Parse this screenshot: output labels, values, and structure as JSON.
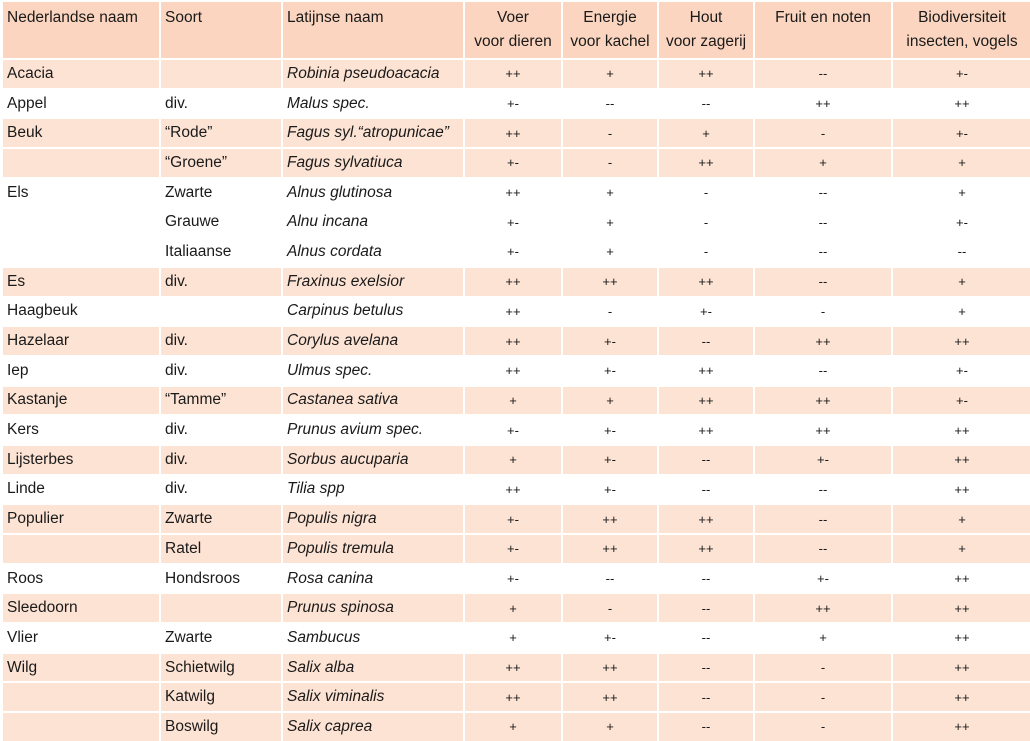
{
  "headers": [
    {
      "line1": "Nederlandse naam",
      "line2": ""
    },
    {
      "line1": "Soort",
      "line2": ""
    },
    {
      "line1": "Latijnse naam",
      "line2": ""
    },
    {
      "line1": "Voer",
      "line2": "voor dieren"
    },
    {
      "line1": "Energie",
      "line2": "voor kachel"
    },
    {
      "line1": "Hout",
      "line2": "voor zagerij"
    },
    {
      "line1": "Fruit en noten",
      "line2": ""
    },
    {
      "line1": "Biodiversiteit",
      "line2": "insecten, vogels"
    }
  ],
  "rows": [
    {
      "shade": true,
      "cells": [
        "Acacia",
        "",
        "Robinia pseudoacacia",
        "++",
        "+",
        "++",
        "--",
        "+-"
      ]
    },
    {
      "shade": false,
      "cells": [
        "Appel",
        "div.",
        "Malus spec.",
        "+-",
        "--",
        "--",
        "++",
        "++"
      ]
    },
    {
      "shade": true,
      "cells": [
        "Beuk",
        "“Rode”",
        "Fagus syl.“atropunicae”",
        "++",
        "-",
        "+",
        "-",
        "+-"
      ]
    },
    {
      "shade": true,
      "cells": [
        "",
        "“Groene”",
        "Fagus sylvatiuca",
        "+-",
        "-",
        "++",
        "+",
        "+"
      ]
    },
    {
      "shade": false,
      "cells": [
        "Els",
        "Zwarte",
        "Alnus glutinosa",
        "++",
        "+",
        "-",
        "--",
        "+"
      ]
    },
    {
      "shade": false,
      "cells": [
        "",
        "Grauwe",
        "Alnu incana",
        "+-",
        "+",
        "-",
        "--",
        "+-"
      ]
    },
    {
      "shade": false,
      "cells": [
        "",
        "Italiaanse",
        "Alnus cordata",
        "+-",
        "+",
        "-",
        "--",
        "--"
      ]
    },
    {
      "shade": true,
      "cells": [
        "Es",
        "div.",
        "Fraxinus exelsior",
        "++",
        "++",
        "++",
        "--",
        "+"
      ]
    },
    {
      "shade": false,
      "cells": [
        "Haagbeuk",
        "",
        "Carpinus betulus",
        "++",
        "-",
        "+-",
        "-",
        "+"
      ]
    },
    {
      "shade": true,
      "cells": [
        "Hazelaar",
        "div.",
        "Corylus avelana",
        "++",
        "+-",
        "--",
        "++",
        "++"
      ]
    },
    {
      "shade": false,
      "cells": [
        "Iep",
        "div.",
        "Ulmus spec.",
        "++",
        "+-",
        "++",
        "--",
        "+-"
      ]
    },
    {
      "shade": true,
      "cells": [
        "Kastanje",
        "“Tamme”",
        "Castanea sativa",
        "+",
        "+",
        "++",
        "++",
        "+-"
      ]
    },
    {
      "shade": false,
      "cells": [
        "Kers",
        "div.",
        "Prunus avium spec.",
        "+-",
        "+-",
        "++",
        "++",
        "++"
      ]
    },
    {
      "shade": true,
      "cells": [
        "Lijsterbes",
        "div.",
        "Sorbus aucuparia",
        "+",
        "+-",
        "--",
        "+-",
        "++"
      ]
    },
    {
      "shade": false,
      "cells": [
        "Linde",
        "div.",
        "Tilia spp",
        "++",
        "+-",
        "--",
        "--",
        "++"
      ]
    },
    {
      "shade": true,
      "cells": [
        "Populier",
        "Zwarte",
        "Populis nigra",
        "+-",
        "++",
        "++",
        "--",
        "+"
      ]
    },
    {
      "shade": true,
      "cells": [
        "",
        "Ratel",
        "Populis tremula",
        "+-",
        "++",
        "++",
        "--",
        "+"
      ]
    },
    {
      "shade": false,
      "cells": [
        "Roos",
        "Hondsroos",
        "Rosa canina",
        "+-",
        "--",
        "--",
        "+-",
        "++"
      ]
    },
    {
      "shade": true,
      "cells": [
        "Sleedoorn",
        "",
        "Prunus spinosa",
        "+",
        "-",
        "--",
        "++",
        "++"
      ]
    },
    {
      "shade": false,
      "cells": [
        "Vlier",
        "Zwarte",
        "Sambucus",
        "+",
        "+-",
        "--",
        "+",
        "++"
      ]
    },
    {
      "shade": true,
      "cells": [
        "Wilg",
        "Schietwilg",
        "Salix alba",
        "++",
        "++",
        "--",
        "-",
        "++"
      ]
    },
    {
      "shade": true,
      "cells": [
        "",
        "Katwilg",
        "Salix viminalis",
        "++",
        "++",
        "--",
        "-",
        "++"
      ]
    },
    {
      "shade": true,
      "cells": [
        "",
        "Boswilg",
        "Salix caprea",
        "+",
        "+",
        "--",
        "-",
        "++"
      ]
    }
  ]
}
